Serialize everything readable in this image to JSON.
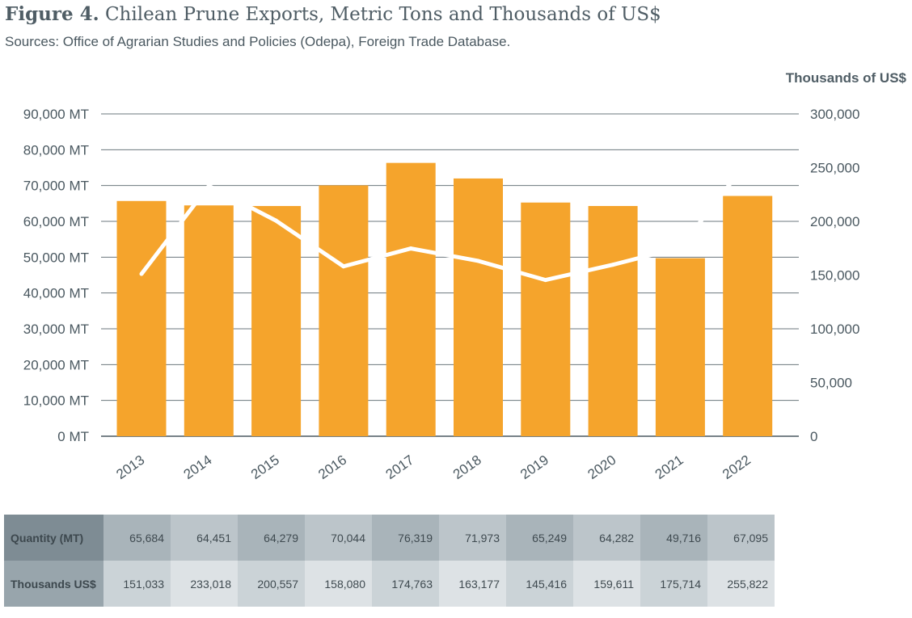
{
  "figure_label": "Figure 4.",
  "title": "Chilean Prune Exports, Metric Tons and Thousands of US$",
  "subtitle": "Sources: Office of Agrarian Studies and Policies (Odepa), Foreign Trade Database.",
  "chart_data": {
    "type": "bar",
    "categories": [
      "2013",
      "2014",
      "2015",
      "2016",
      "2017",
      "2018",
      "2019",
      "2020",
      "2021",
      "2022"
    ],
    "series": [
      {
        "name": "Quantity (MT)",
        "type": "bar",
        "axis": "left",
        "color": "#f5a42c",
        "values": [
          65684,
          64451,
          64279,
          70044,
          76319,
          71973,
          65249,
          64282,
          49716,
          67095
        ]
      },
      {
        "name": "Thousands US$",
        "type": "line",
        "axis": "right",
        "color": "#ffffff",
        "values": [
          151033,
          233018,
          200557,
          158080,
          174763,
          163177,
          145416,
          159611,
          175714,
          255822
        ]
      }
    ],
    "left_axis": {
      "ylim": [
        0,
        90000
      ],
      "ticks": [
        "0 MT",
        "10,000 MT",
        "20,000 MT",
        "30,000 MT",
        "40,000 MT",
        "50,000 MT",
        "60,000 MT",
        "70,000 MT",
        "80,000 MT",
        "90,000 MT"
      ]
    },
    "right_axis": {
      "label": "Thousands of US$",
      "ylim": [
        0,
        300000
      ],
      "ticks": [
        "0",
        "50,000",
        "100,000",
        "150,000",
        "200,000",
        "250,000",
        "300,000"
      ]
    },
    "grid": true
  },
  "table": {
    "rows": [
      {
        "label": "Quantity (MT)",
        "values": [
          "65,684",
          "64,451",
          "64,279",
          "70,044",
          "76,319",
          "71,973",
          "65,249",
          "64,282",
          "49,716",
          "67,095"
        ]
      },
      {
        "label": "Thousands US$",
        "values": [
          "151,033",
          "233,018",
          "200,557",
          "158,080",
          "174,763",
          "163,177",
          "145,416",
          "159,611",
          "175,714",
          "255,822"
        ]
      }
    ]
  }
}
